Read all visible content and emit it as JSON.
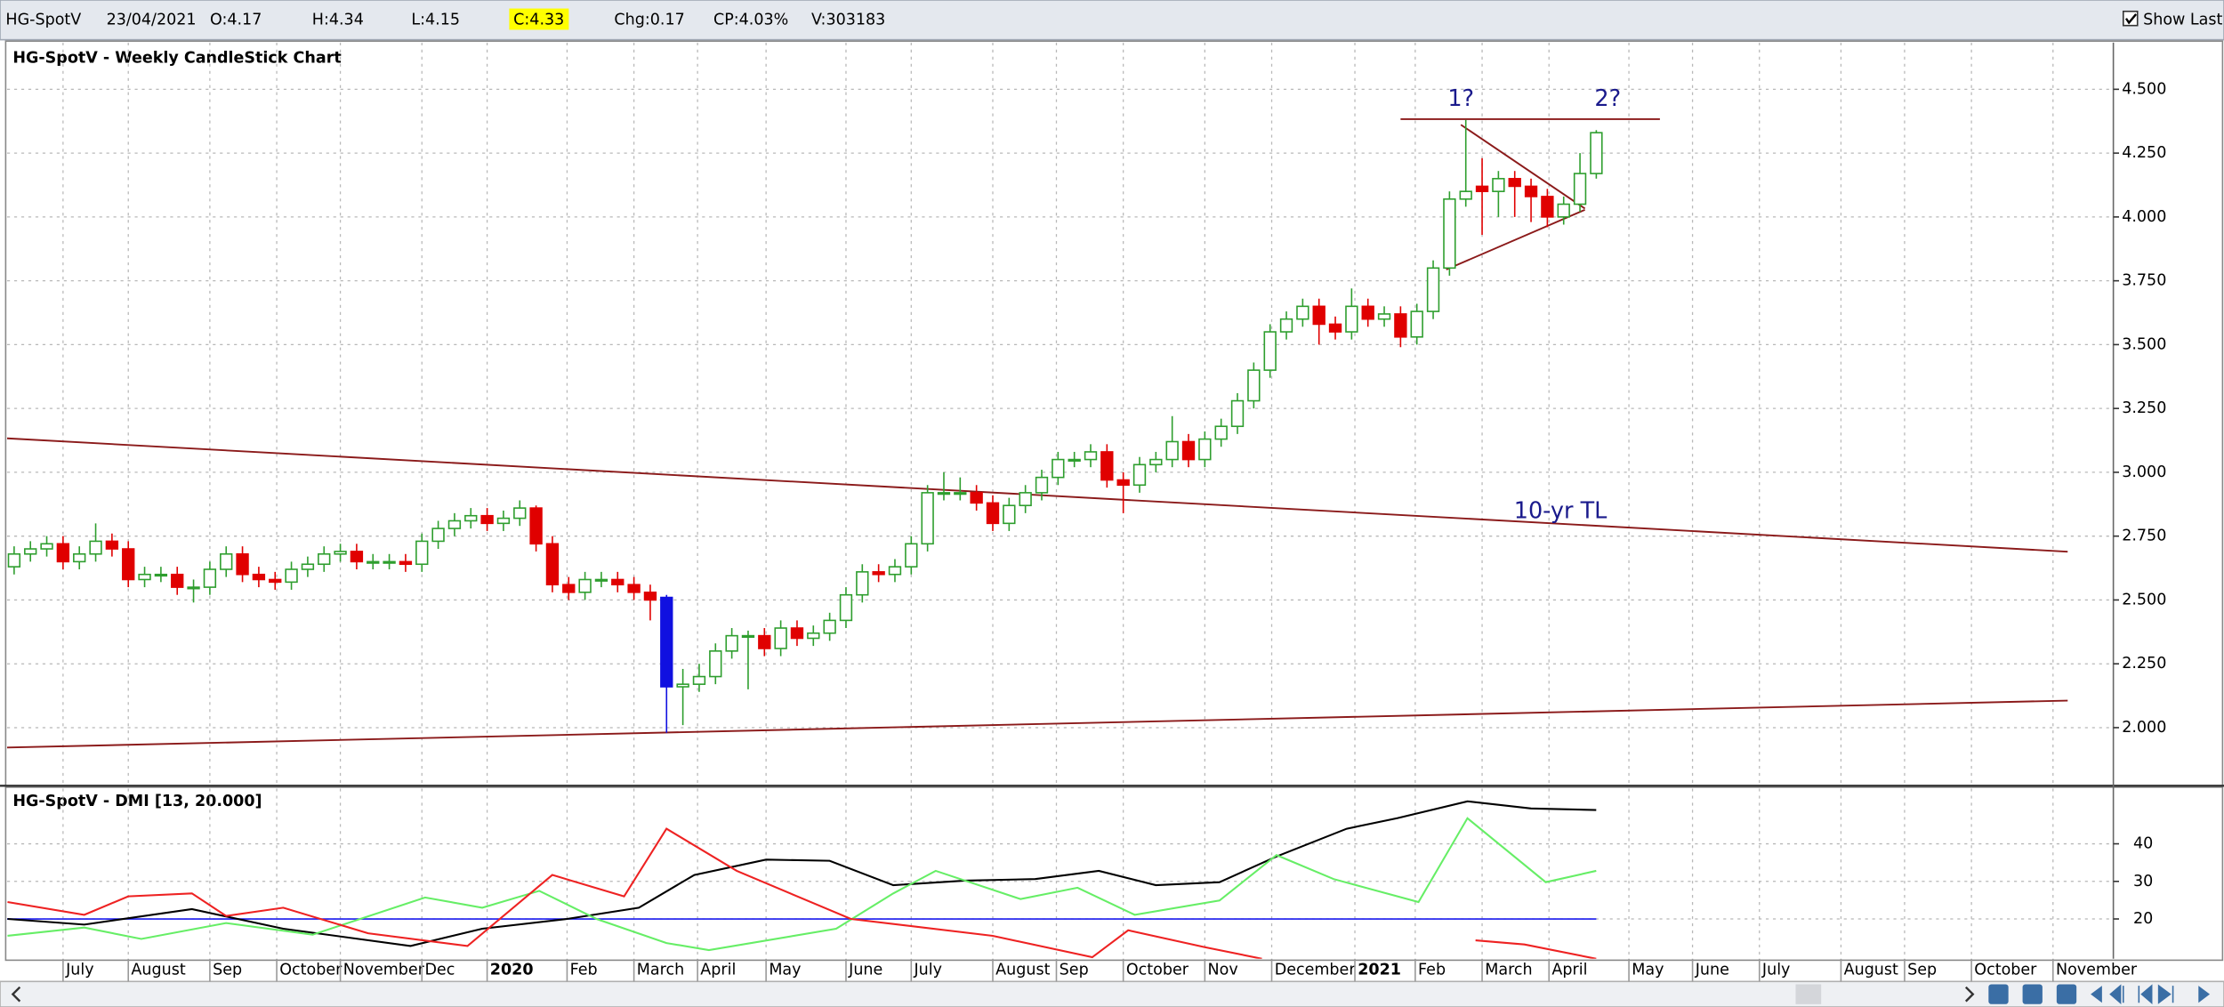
{
  "toolbar": {
    "symbol": "HG-SpotV",
    "date": "23/04/2021",
    "open": "O:4.17",
    "high": "H:4.34",
    "low": "L:4.15",
    "close": "C:4.33",
    "change": "Chg:0.17",
    "change_pct": "CP:4.03%",
    "volume": "V:303183",
    "show_last": "Show Last"
  },
  "chart_data": [
    {
      "type": "candlestick",
      "title": "HG-SpotV - Weekly CandleStick Chart",
      "colors": {
        "up": "#2e9e2e",
        "down": "#e00000"
      },
      "highlight": {
        "index": 40,
        "color": "#1010e0"
      },
      "xlim": [
        -0.43,
        128.7
      ],
      "ylim": [
        1.778,
        4.683
      ],
      "grid": true,
      "yticks": [
        {
          "value": 2,
          "label": "2.000"
        },
        {
          "value": 2.25,
          "label": "2.250"
        },
        {
          "value": 2.5,
          "label": "2.500"
        },
        {
          "value": 2.75,
          "label": "2.750"
        },
        {
          "value": 3,
          "label": "3.000"
        },
        {
          "value": 3.25,
          "label": "3.250"
        },
        {
          "value": 3.5,
          "label": "3.500"
        },
        {
          "value": 3.75,
          "label": "3.750"
        },
        {
          "value": 4,
          "label": "4.000"
        },
        {
          "value": 4.25,
          "label": "4.250"
        },
        {
          "value": 4.5,
          "label": "4.500"
        }
      ],
      "xticks": [
        {
          "value": 3.0,
          "label": "July"
        },
        {
          "value": 7.0,
          "label": "August"
        },
        {
          "value": 12.0,
          "label": "Sep"
        },
        {
          "value": 16.1,
          "label": "October"
        },
        {
          "value": 20.0,
          "label": "November"
        },
        {
          "value": 25.0,
          "label": "Dec"
        },
        {
          "value": 29.0,
          "label": "2020"
        },
        {
          "value": 33.9,
          "label": "Feb"
        },
        {
          "value": 38.0,
          "label": "March"
        },
        {
          "value": 41.9,
          "label": "April"
        },
        {
          "value": 46.1,
          "label": "May"
        },
        {
          "value": 51.0,
          "label": "June"
        },
        {
          "value": 55.0,
          "label": "July"
        },
        {
          "value": 60.0,
          "label": "August"
        },
        {
          "value": 63.9,
          "label": "Sep"
        },
        {
          "value": 68.0,
          "label": "October"
        },
        {
          "value": 73.0,
          "label": "Nov"
        },
        {
          "value": 77.1,
          "label": "December"
        },
        {
          "value": 82.2,
          "label": "2021"
        },
        {
          "value": 85.9,
          "label": "Feb"
        },
        {
          "value": 90.0,
          "label": "March"
        },
        {
          "value": 94.1,
          "label": "April"
        },
        {
          "value": 99.0,
          "label": "May"
        },
        {
          "value": 102.9,
          "label": "June"
        },
        {
          "value": 107.0,
          "label": "July"
        },
        {
          "value": 112.0,
          "label": "August"
        },
        {
          "value": 115.9,
          "label": "Sep"
        },
        {
          "value": 120.0,
          "label": "October"
        },
        {
          "value": 125.0,
          "label": "November"
        }
      ],
      "candles": [
        [
          2.63,
          2.71,
          2.6,
          2.68
        ],
        [
          2.68,
          2.73,
          2.65,
          2.7
        ],
        [
          2.7,
          2.75,
          2.67,
          2.72
        ],
        [
          2.72,
          2.75,
          2.62,
          2.65
        ],
        [
          2.65,
          2.71,
          2.62,
          2.68
        ],
        [
          2.68,
          2.8,
          2.65,
          2.73
        ],
        [
          2.73,
          2.76,
          2.67,
          2.7
        ],
        [
          2.7,
          2.73,
          2.55,
          2.58
        ],
        [
          2.58,
          2.63,
          2.55,
          2.6
        ],
        [
          2.6,
          2.63,
          2.57,
          2.6
        ],
        [
          2.6,
          2.63,
          2.52,
          2.55
        ],
        [
          2.55,
          2.58,
          2.49,
          2.55
        ],
        [
          2.55,
          2.65,
          2.52,
          2.62
        ],
        [
          2.62,
          2.71,
          2.59,
          2.68
        ],
        [
          2.68,
          2.71,
          2.57,
          2.6
        ],
        [
          2.6,
          2.63,
          2.55,
          2.58
        ],
        [
          2.58,
          2.61,
          2.54,
          2.57
        ],
        [
          2.57,
          2.65,
          2.54,
          2.62
        ],
        [
          2.62,
          2.67,
          2.59,
          2.64
        ],
        [
          2.64,
          2.71,
          2.61,
          2.68
        ],
        [
          2.68,
          2.72,
          2.65,
          2.69
        ],
        [
          2.69,
          2.72,
          2.62,
          2.65
        ],
        [
          2.65,
          2.68,
          2.62,
          2.65
        ],
        [
          2.65,
          2.68,
          2.62,
          2.65
        ],
        [
          2.65,
          2.68,
          2.61,
          2.64
        ],
        [
          2.64,
          2.76,
          2.61,
          2.73
        ],
        [
          2.73,
          2.81,
          2.7,
          2.78
        ],
        [
          2.78,
          2.84,
          2.75,
          2.81
        ],
        [
          2.81,
          2.86,
          2.78,
          2.83
        ],
        [
          2.83,
          2.86,
          2.77,
          2.8
        ],
        [
          2.8,
          2.85,
          2.77,
          2.82
        ],
        [
          2.82,
          2.89,
          2.79,
          2.86
        ],
        [
          2.86,
          2.87,
          2.69,
          2.72
        ],
        [
          2.72,
          2.75,
          2.53,
          2.56
        ],
        [
          2.56,
          2.59,
          2.5,
          2.53
        ],
        [
          2.53,
          2.61,
          2.5,
          2.58
        ],
        [
          2.58,
          2.61,
          2.55,
          2.58
        ],
        [
          2.58,
          2.61,
          2.53,
          2.56
        ],
        [
          2.56,
          2.59,
          2.5,
          2.53
        ],
        [
          2.53,
          2.56,
          2.42,
          2.5
        ],
        [
          2.51,
          2.52,
          1.98,
          2.16
        ],
        [
          2.16,
          2.23,
          2.01,
          2.17
        ],
        [
          2.17,
          2.25,
          2.14,
          2.2
        ],
        [
          2.2,
          2.33,
          2.17,
          2.3
        ],
        [
          2.3,
          2.39,
          2.27,
          2.36
        ],
        [
          2.36,
          2.38,
          2.15,
          2.36
        ],
        [
          2.36,
          2.39,
          2.28,
          2.31
        ],
        [
          2.31,
          2.42,
          2.28,
          2.39
        ],
        [
          2.39,
          2.42,
          2.32,
          2.35
        ],
        [
          2.35,
          2.4,
          2.32,
          2.37
        ],
        [
          2.37,
          2.45,
          2.34,
          2.42
        ],
        [
          2.42,
          2.55,
          2.39,
          2.52
        ],
        [
          2.52,
          2.64,
          2.49,
          2.61
        ],
        [
          2.61,
          2.64,
          2.57,
          2.6
        ],
        [
          2.6,
          2.66,
          2.57,
          2.63
        ],
        [
          2.63,
          2.75,
          2.6,
          2.72
        ],
        [
          2.72,
          2.95,
          2.69,
          2.92
        ],
        [
          2.92,
          3.0,
          2.89,
          2.92
        ],
        [
          2.92,
          2.98,
          2.89,
          2.92
        ],
        [
          2.92,
          2.95,
          2.85,
          2.88
        ],
        [
          2.88,
          2.91,
          2.77,
          2.8
        ],
        [
          2.8,
          2.9,
          2.77,
          2.87
        ],
        [
          2.87,
          2.95,
          2.84,
          2.92
        ],
        [
          2.92,
          3.01,
          2.89,
          2.98
        ],
        [
          2.98,
          3.08,
          2.95,
          3.05
        ],
        [
          3.05,
          3.08,
          3.02,
          3.05
        ],
        [
          3.05,
          3.11,
          3.02,
          3.08
        ],
        [
          3.08,
          3.11,
          2.94,
          2.97
        ],
        [
          2.97,
          3.0,
          2.84,
          2.95
        ],
        [
          2.95,
          3.06,
          2.92,
          3.03
        ],
        [
          3.03,
          3.08,
          3.0,
          3.05
        ],
        [
          3.05,
          3.22,
          3.02,
          3.12
        ],
        [
          3.12,
          3.15,
          3.02,
          3.05
        ],
        [
          3.05,
          3.16,
          3.02,
          3.13
        ],
        [
          3.13,
          3.21,
          3.1,
          3.18
        ],
        [
          3.18,
          3.31,
          3.15,
          3.28
        ],
        [
          3.28,
          3.43,
          3.25,
          3.4
        ],
        [
          3.4,
          3.58,
          3.37,
          3.55
        ],
        [
          3.55,
          3.63,
          3.52,
          3.6
        ],
        [
          3.6,
          3.68,
          3.57,
          3.65
        ],
        [
          3.65,
          3.68,
          3.5,
          3.58
        ],
        [
          3.58,
          3.61,
          3.52,
          3.55
        ],
        [
          3.55,
          3.72,
          3.52,
          3.65
        ],
        [
          3.65,
          3.68,
          3.57,
          3.6
        ],
        [
          3.6,
          3.65,
          3.57,
          3.62
        ],
        [
          3.62,
          3.65,
          3.49,
          3.53
        ],
        [
          3.53,
          3.66,
          3.5,
          3.63
        ],
        [
          3.63,
          3.83,
          3.6,
          3.8
        ],
        [
          3.8,
          4.1,
          3.77,
          4.07
        ],
        [
          4.07,
          4.38,
          4.04,
          4.1
        ],
        [
          4.12,
          4.23,
          3.93,
          4.1
        ],
        [
          4.1,
          4.18,
          4.0,
          4.15
        ],
        [
          4.15,
          4.18,
          4.0,
          4.12
        ],
        [
          4.12,
          4.15,
          3.98,
          4.08
        ],
        [
          4.08,
          4.11,
          3.96,
          4.0
        ],
        [
          4.0,
          4.08,
          3.97,
          4.05
        ],
        [
          4.05,
          4.25,
          4.02,
          4.17
        ],
        [
          4.17,
          4.34,
          4.15,
          4.33
        ]
      ],
      "lines_color": "#8b1a1a",
      "lines": [
        {
          "x": [
            -0.43,
            125.9
          ],
          "y": [
            3.133,
            2.689
          ]
        },
        {
          "x": [
            -0.43,
            125.9
          ],
          "y": [
            1.922,
            2.106
          ]
        },
        {
          "x": [
            85.0,
            100.9
          ],
          "y": [
            4.383,
            4.383
          ]
        },
        {
          "x": [
            88.7,
            96.3
          ],
          "y": [
            4.361,
            4.033
          ]
        },
        {
          "x": [
            87.8,
            96.3
          ],
          "y": [
            3.794,
            4.028
          ]
        }
      ],
      "annotations_color": "#1a1a8c",
      "annotations": [
        {
          "text": "1?",
          "x": 88.7,
          "y": 4.46
        },
        {
          "text": "2?",
          "x": 97.7,
          "y": 4.46
        },
        {
          "text": "10-yr TL",
          "x": 94.8,
          "y": 2.844
        }
      ]
    },
    {
      "type": "line",
      "title": "HG-SpotV - DMI [13, 20.000]",
      "ylim": [
        9.4,
        54.7
      ],
      "yticks": [
        20,
        30,
        40
      ],
      "grid": true,
      "threshold": 20,
      "threshold_color": "#1a1aee",
      "series": [
        {
          "color": "#000000",
          "x": [
            -0.4,
            4.3,
            10.9,
            16.5,
            24.3,
            28.7,
            33.9,
            38.3,
            41.7,
            46.1,
            50,
            53.9,
            58.3,
            62.6,
            66.5,
            70,
            73.9,
            77.4,
            81.7,
            84.8,
            89.1,
            93,
            97
          ],
          "values": [
            20,
            18.5,
            22.6,
            17.4,
            12.8,
            17.4,
            20,
            23,
            31.7,
            35.8,
            35.5,
            29,
            30.2,
            30.6,
            32.8,
            29,
            29.8,
            36.6,
            44,
            46.8,
            51.3,
            49.4,
            49
          ]
        },
        {
          "color": "#66ee66",
          "x": [
            -0.4,
            4.3,
            7.8,
            13,
            18.3,
            25.2,
            28.7,
            32.2,
            35.7,
            40,
            42.6,
            50.4,
            53.9,
            56.5,
            61.7,
            65.2,
            68.7,
            73.9,
            77.4,
            80.9,
            86.1,
            89.1,
            93.9,
            97
          ],
          "values": [
            15.5,
            17.7,
            14.7,
            18.9,
            15.8,
            25.7,
            23,
            27.5,
            20,
            13.6,
            11.7,
            17.4,
            26.8,
            32.8,
            25.3,
            28.3,
            21.1,
            24.9,
            37,
            30.6,
            24.5,
            46.8,
            29.8,
            32.8
          ]
        },
        {
          "color": "#ee2222",
          "x": [
            -0.4,
            4.3,
            7,
            10.9,
            13,
            16.5,
            21.7,
            27.8,
            33,
            37.4,
            40,
            44.3,
            51.3,
            60,
            66.1,
            68.3,
            73,
            76.5,
            83,
            89.6,
            92.6,
            97
          ],
          "values": [
            24.5,
            21.1,
            26,
            26.8,
            20.8,
            23,
            16.2,
            12.8,
            31.7,
            26,
            44,
            32.8,
            20,
            15.5,
            9.8,
            17,
            12.5,
            9.4,
            null,
            14.3,
            13.2,
            9.4
          ]
        }
      ]
    }
  ]
}
